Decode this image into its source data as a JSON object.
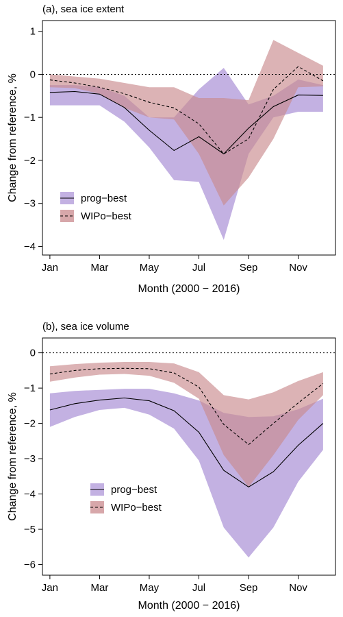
{
  "chart_data": [
    {
      "type": "area",
      "title": "(a), sea ice extent",
      "xlabel": "Month (2000 − 2016)",
      "ylabel": "Change from reference, %",
      "xlim": [
        0.7,
        12.5
      ],
      "ylim": [
        -4.2,
        1.25
      ],
      "x_ticks": [
        1,
        3,
        5,
        7,
        9,
        11
      ],
      "x_tick_labels": [
        "Jan",
        "Mar",
        "May",
        "Jul",
        "Sep",
        "Nov"
      ],
      "y_ticks": [
        1,
        0,
        -1,
        -2,
        -3,
        -4
      ],
      "y_tick_labels": [
        "1",
        "0",
        "−1",
        "−2",
        "−3",
        "−4"
      ],
      "reference_line": 0,
      "grid": false,
      "legend_placement": "bottom-left",
      "x": [
        1,
        2,
        3,
        4,
        5,
        6,
        7,
        8,
        9,
        10,
        11,
        12
      ],
      "series": [
        {
          "name": "prog−best",
          "line_style": "solid",
          "line_color": "#000000",
          "band_color": "#b8a3dd",
          "mean": [
            -0.42,
            -0.4,
            -0.46,
            -0.77,
            -1.3,
            -1.77,
            -1.45,
            -1.85,
            -1.25,
            -0.75,
            -0.48,
            -0.49
          ],
          "lower": [
            -0.72,
            -0.72,
            -0.72,
            -1.1,
            -1.7,
            -2.46,
            -2.5,
            -3.85,
            -1.85,
            -1.0,
            -0.87,
            -0.87
          ],
          "upper": [
            -0.25,
            -0.25,
            -0.3,
            -0.5,
            -1.0,
            -1.0,
            -0.35,
            0.15,
            -0.7,
            -0.5,
            -0.12,
            -0.25
          ]
        },
        {
          "name": "WIPo−best",
          "line_style": "dashed",
          "line_color": "#000000",
          "band_color": "#c98a8d",
          "mean": [
            -0.13,
            -0.2,
            -0.3,
            -0.45,
            -0.65,
            -0.78,
            -1.15,
            -1.85,
            -1.5,
            -0.35,
            0.18,
            -0.15
          ],
          "lower": [
            -0.3,
            -0.32,
            -0.45,
            -0.78,
            -1.0,
            -1.05,
            -1.85,
            -3.05,
            -2.4,
            -1.5,
            -0.3,
            -0.28
          ],
          "upper": [
            0.0,
            -0.05,
            -0.1,
            -0.2,
            -0.3,
            -0.3,
            -0.55,
            -0.55,
            -0.6,
            0.8,
            0.5,
            0.2
          ]
        }
      ]
    },
    {
      "type": "area",
      "title": "(b), sea ice volume",
      "xlabel": "Month (2000 − 2016)",
      "ylabel": "Change from reference, %",
      "xlim": [
        0.7,
        12.5
      ],
      "ylim": [
        -6.3,
        0.42
      ],
      "x_ticks": [
        1,
        3,
        5,
        7,
        9,
        11
      ],
      "x_tick_labels": [
        "Jan",
        "Mar",
        "May",
        "Jul",
        "Sep",
        "Nov"
      ],
      "y_ticks": [
        0,
        -1,
        -2,
        -3,
        -4,
        -5,
        -6
      ],
      "y_tick_labels": [
        "0",
        "−1",
        "−2",
        "−3",
        "−4",
        "−5",
        "−6"
      ],
      "reference_line": 0,
      "grid": false,
      "legend_placement": "bottom-left",
      "x": [
        1,
        2,
        3,
        4,
        5,
        6,
        7,
        8,
        9,
        10,
        11,
        12
      ],
      "series": [
        {
          "name": "prog−best",
          "line_style": "solid",
          "line_color": "#000000",
          "band_color": "#b8a3dd",
          "mean": [
            -1.62,
            -1.44,
            -1.34,
            -1.28,
            -1.36,
            -1.64,
            -2.25,
            -3.33,
            -3.8,
            -3.37,
            -2.62,
            -2.0
          ],
          "lower": [
            -2.1,
            -1.82,
            -1.62,
            -1.56,
            -1.75,
            -2.15,
            -3.05,
            -4.95,
            -5.8,
            -4.95,
            -3.65,
            -2.75
          ],
          "upper": [
            -1.15,
            -1.08,
            -1.05,
            -1.02,
            -1.02,
            -1.15,
            -1.35,
            -1.7,
            -1.82,
            -1.8,
            -1.6,
            -1.3
          ]
        },
        {
          "name": "WIPo−best",
          "line_style": "dashed",
          "line_color": "#000000",
          "band_color": "#c98a8d",
          "mean": [
            -0.6,
            -0.5,
            -0.45,
            -0.44,
            -0.45,
            -0.57,
            -0.97,
            -2.03,
            -2.6,
            -2.0,
            -1.42,
            -0.87
          ],
          "lower": [
            -0.82,
            -0.7,
            -0.62,
            -0.6,
            -0.65,
            -0.85,
            -1.3,
            -2.9,
            -3.8,
            -2.9,
            -1.9,
            -1.2
          ],
          "upper": [
            -0.38,
            -0.32,
            -0.28,
            -0.26,
            -0.26,
            -0.3,
            -0.55,
            -1.2,
            -1.32,
            -1.12,
            -0.8,
            -0.55
          ]
        }
      ]
    }
  ]
}
